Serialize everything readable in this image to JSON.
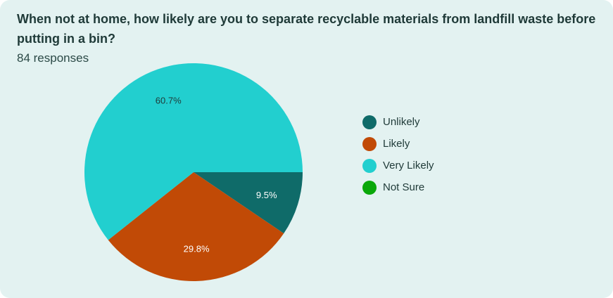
{
  "card": {
    "title": "When not at home, how likely are you to separate recyclable materials from landfill waste before putting in a bin?",
    "responses": "84 responses"
  },
  "chart_data": {
    "type": "pie",
    "title": "When not at home, how likely are you to separate recyclable materials from landfill waste before putting in a bin?",
    "legend_position": "right",
    "start": "3 o'clock, clockwise",
    "slices": [
      {
        "name": "Unlikely",
        "value": 9.5,
        "label": "9.5%",
        "color": "#0f6b69",
        "label_color": "#ffffff"
      },
      {
        "name": "Likely",
        "value": 29.8,
        "label": "29.8%",
        "color": "#c14a06",
        "label_color": "#ffffff"
      },
      {
        "name": "Very Likely",
        "value": 60.7,
        "label": "60.7%",
        "color": "#22cfcf",
        "label_color": "#1f3a38"
      },
      {
        "name": "Not Sure",
        "value": 0,
        "label": "",
        "color": "#0aa80a",
        "label_color": "#ffffff"
      }
    ]
  }
}
